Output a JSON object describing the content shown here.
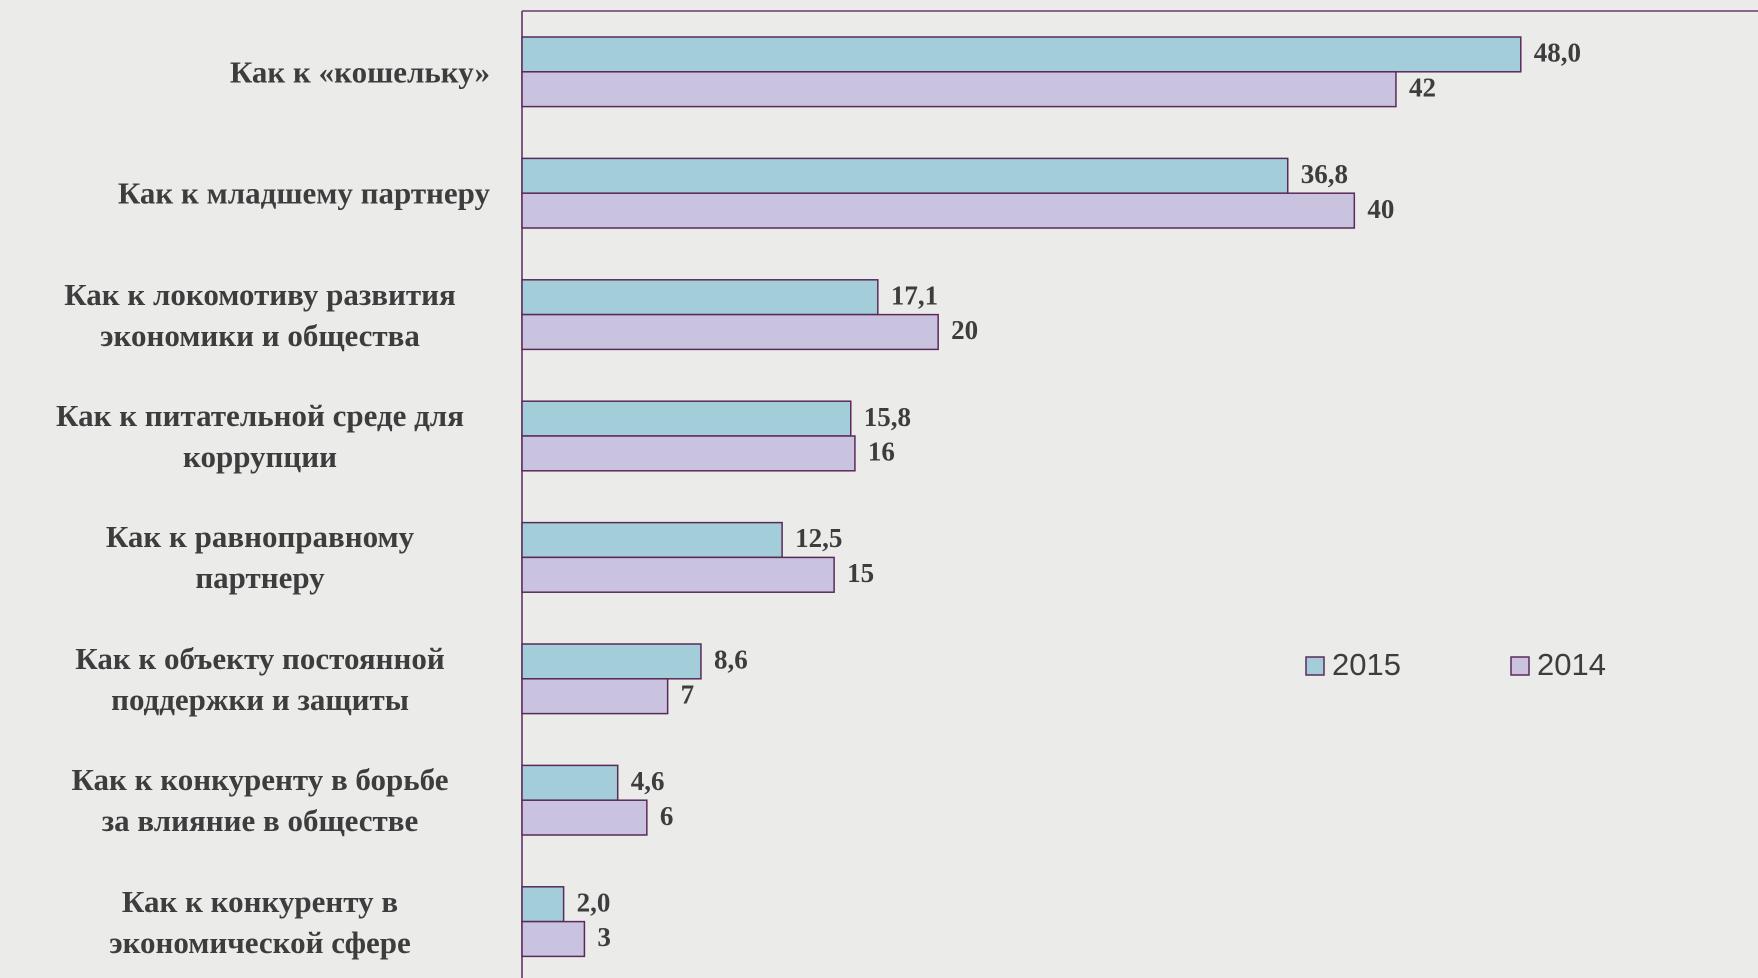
{
  "chart_data": {
    "type": "bar",
    "orientation": "horizontal",
    "categories": [
      "Как к «кошельку»",
      "Как к младшему партнеру",
      "Как к локомотиву развития\nэкономики и общества",
      "Как к питательной среде для\nкоррупции",
      "Как к равноправному\nпартнеру",
      "Как к объекту постоянной\nподдержки и защиты",
      "Как к конкуренту в борьбе\nза влияние в обществе",
      "Как к конкуренту в\nэкономической сфере"
    ],
    "series": [
      {
        "name": "2015",
        "color": "#a3cdd8",
        "values": [
          48.0,
          36.8,
          17.1,
          15.8,
          12.5,
          8.6,
          4.6,
          2.0
        ],
        "value_labels": [
          "48,0",
          "36,8",
          "17,1",
          "15,8",
          "12,5",
          "8,6",
          "4,6",
          "2,0"
        ]
      },
      {
        "name": "2014",
        "color": "#c9c3df",
        "values": [
          42,
          40,
          20,
          16,
          15,
          7,
          6,
          3
        ]
      }
    ],
    "xlim": [
      0,
      59.4
    ],
    "legend": "center-right"
  }
}
